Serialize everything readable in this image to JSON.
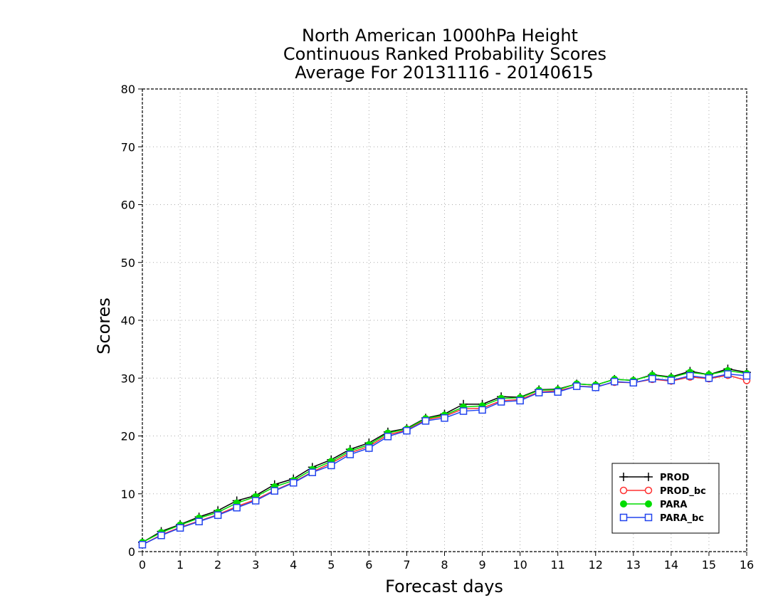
{
  "chart_data": {
    "type": "line",
    "title": [
      "North American 1000hPa Height",
      "Continuous Ranked Probability Scores",
      "Average For 20131116 - 20140615"
    ],
    "xlabel": "Forecast days",
    "ylabel": "Scores",
    "xlim": [
      0,
      16
    ],
    "ylim": [
      0,
      80
    ],
    "xticks": [
      0,
      1,
      2,
      3,
      4,
      5,
      6,
      7,
      8,
      9,
      10,
      11,
      12,
      13,
      14,
      15,
      16
    ],
    "yticks": [
      0,
      10,
      20,
      30,
      40,
      50,
      60,
      70,
      80
    ],
    "grid": true,
    "legend_position": "bottom-right",
    "x": [
      0,
      0.5,
      1,
      1.5,
      2,
      2.5,
      3,
      3.5,
      4,
      4.5,
      5,
      5.5,
      6,
      6.5,
      7,
      7.5,
      8,
      8.5,
      9,
      9.5,
      10,
      10.5,
      11,
      11.5,
      12,
      12.5,
      13,
      13.5,
      14,
      14.5,
      15,
      15.5,
      16
    ],
    "series": [
      {
        "name": "PROD",
        "color": "#000000",
        "marker": "plus",
        "values": [
          1.6,
          3.5,
          4.7,
          6.0,
          7.1,
          8.8,
          9.7,
          11.6,
          12.6,
          14.6,
          15.9,
          17.7,
          18.8,
          20.7,
          21.3,
          23.1,
          23.8,
          25.5,
          25.5,
          26.8,
          26.7,
          28.0,
          28.1,
          29.0,
          28.8,
          29.8,
          29.6,
          30.6,
          30.2,
          31.2,
          30.6,
          31.6,
          31.0
        ]
      },
      {
        "name": "PROD_bc",
        "color": "#ff3030",
        "marker": "circle-open",
        "values": [
          1.2,
          2.9,
          4.2,
          5.3,
          6.4,
          7.8,
          9.0,
          10.6,
          12.0,
          13.8,
          15.3,
          17.1,
          18.2,
          20.2,
          21.0,
          22.8,
          23.4,
          24.7,
          24.8,
          26.1,
          26.3,
          27.6,
          27.8,
          28.6,
          28.5,
          29.3,
          29.2,
          29.8,
          29.5,
          30.2,
          29.9,
          30.5,
          29.6
        ]
      },
      {
        "name": "PARA",
        "color": "#00dc00",
        "marker": "circle-filled",
        "values": [
          1.6,
          3.3,
          4.6,
          5.8,
          6.8,
          8.4,
          9.5,
          11.2,
          12.3,
          14.2,
          15.6,
          17.4,
          18.5,
          20.5,
          21.2,
          23.0,
          23.6,
          25.0,
          25.2,
          26.5,
          26.6,
          27.9,
          28.0,
          29.0,
          28.8,
          29.8,
          29.6,
          30.5,
          30.1,
          31.0,
          30.6,
          31.3,
          30.8
        ]
      },
      {
        "name": "PARA_bc",
        "color": "#2244ee",
        "marker": "square-open",
        "values": [
          1.2,
          2.8,
          4.1,
          5.2,
          6.3,
          7.6,
          8.8,
          10.5,
          11.9,
          13.7,
          14.9,
          16.8,
          17.9,
          19.9,
          20.9,
          22.6,
          23.1,
          24.3,
          24.5,
          25.9,
          26.1,
          27.5,
          27.6,
          28.6,
          28.4,
          29.4,
          29.2,
          29.9,
          29.6,
          30.4,
          30.0,
          30.7,
          30.4
        ]
      }
    ]
  }
}
